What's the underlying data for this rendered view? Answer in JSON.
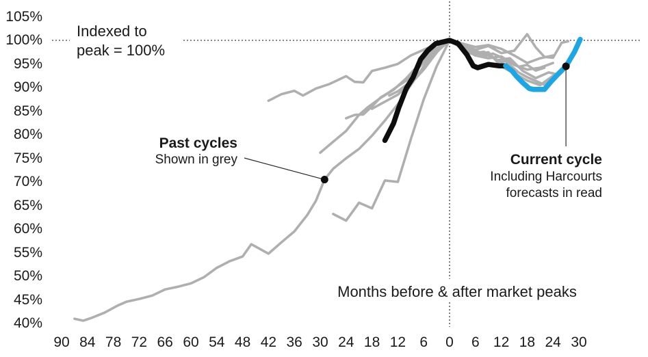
{
  "annotations": {
    "indexed_note": {
      "line1": "Indexed to",
      "line2": "peak = 100%"
    },
    "past_cycles": {
      "title": "Past cycles",
      "subtitle": "Shown in grey"
    },
    "current_cycle": {
      "title": "Current cycle",
      "subtitle1": "Including Harcourts",
      "subtitle2": "forecasts in read"
    }
  },
  "colors": {
    "grey": "#afafaf",
    "black": "#0d0d0d",
    "blue": "#1ca6e4",
    "dash": "#3a3a3a"
  },
  "chart_data": {
    "type": "line",
    "title": "",
    "xlabel": "Months before & after market peaks",
    "ylabel": "Indexed to peak = 100%",
    "xlim": [
      -95,
      35
    ],
    "ylim": [
      38,
      106
    ],
    "grid": false,
    "legend_position": "annotations-inline",
    "reference_lines": {
      "horizontal_at_100_pct": true,
      "vertical_at_month_0": true
    },
    "x_ticks": [
      [
        -90,
        "90"
      ],
      [
        -84,
        "84"
      ],
      [
        -78,
        "78"
      ],
      [
        -72,
        "72"
      ],
      [
        -66,
        "66"
      ],
      [
        -60,
        "60"
      ],
      [
        -54,
        "54"
      ],
      [
        -48,
        "48"
      ],
      [
        -42,
        "42"
      ],
      [
        -36,
        "36"
      ],
      [
        -30,
        "30"
      ],
      [
        -24,
        "24"
      ],
      [
        -18,
        "18"
      ],
      [
        -12,
        "12"
      ],
      [
        -6,
        "6"
      ],
      [
        0,
        "0"
      ],
      [
        6,
        "6"
      ],
      [
        12,
        "12"
      ],
      [
        18,
        "18"
      ],
      [
        24,
        "24"
      ],
      [
        30,
        "30"
      ]
    ],
    "y_ticks": [
      [
        105,
        "105%"
      ],
      [
        100,
        "100%"
      ],
      [
        95,
        "95%"
      ],
      [
        90,
        "90%"
      ],
      [
        85,
        "85%"
      ],
      [
        80,
        "80%"
      ],
      [
        75,
        "75%"
      ],
      [
        70,
        "70%"
      ],
      [
        65,
        "65%"
      ],
      [
        60,
        "60%"
      ],
      [
        55,
        "55%"
      ],
      [
        50,
        "50%"
      ],
      [
        45,
        "45%"
      ],
      [
        40,
        "40%"
      ]
    ],
    "series": [
      {
        "name": "past-cycle-1",
        "group": "past-cycles",
        "color": "#afafaf",
        "width": 3.6,
        "points": [
          [
            -87,
            41
          ],
          [
            -85,
            40.6
          ],
          [
            -83,
            41.2
          ],
          [
            -80,
            42.3
          ],
          [
            -77,
            43.8
          ],
          [
            -75,
            44.6
          ],
          [
            -72,
            45.2
          ],
          [
            -69,
            45.9
          ],
          [
            -66,
            47.2
          ],
          [
            -63,
            47.8
          ],
          [
            -60,
            48.5
          ],
          [
            -57,
            49.8
          ],
          [
            -54,
            51.8
          ],
          [
            -51,
            53.2
          ],
          [
            -48,
            54.2
          ],
          [
            -46,
            56.8
          ],
          [
            -42,
            54.8
          ],
          [
            -39,
            57.2
          ],
          [
            -36,
            59.5
          ],
          [
            -33,
            63
          ],
          [
            -31,
            66
          ],
          [
            -29,
            70.5
          ],
          [
            -27,
            72.8
          ],
          [
            -24,
            75
          ],
          [
            -21,
            77
          ],
          [
            -18,
            79.8
          ],
          [
            -15,
            83
          ],
          [
            -12,
            86.5
          ],
          [
            -9,
            90.5
          ],
          [
            -6,
            94.5
          ],
          [
            -3,
            98
          ],
          [
            0,
            100
          ],
          [
            2,
            99.2
          ],
          [
            4,
            98.2
          ],
          [
            6,
            96.8
          ],
          [
            9,
            96.2
          ],
          [
            12,
            96.6
          ],
          [
            15,
            94.8
          ],
          [
            18,
            93.8
          ],
          [
            21,
            94.2
          ],
          [
            24,
            95.2
          ]
        ]
      },
      {
        "name": "past-cycle-2",
        "group": "past-cycles",
        "color": "#afafaf",
        "width": 3.6,
        "points": [
          [
            -42,
            87.2
          ],
          [
            -39,
            88.6
          ],
          [
            -36,
            89.3
          ],
          [
            -34,
            88.3
          ],
          [
            -31,
            89.8
          ],
          [
            -28,
            90.7
          ],
          [
            -24,
            92.4
          ],
          [
            -22,
            91.2
          ],
          [
            -20,
            91.1
          ],
          [
            -18,
            93.5
          ],
          [
            -15,
            94.2
          ],
          [
            -12,
            95
          ],
          [
            -9,
            96.8
          ],
          [
            -6,
            98
          ],
          [
            -3,
            99.2
          ],
          [
            0,
            100
          ],
          [
            3,
            99
          ],
          [
            6,
            98
          ],
          [
            9,
            98.8
          ],
          [
            12,
            97.3
          ],
          [
            15,
            97.8
          ],
          [
            18,
            101.3
          ],
          [
            20,
            98.5
          ],
          [
            22,
            96.5
          ],
          [
            24,
            96.3
          ],
          [
            26,
            99.5
          ],
          [
            27.5,
            99.8
          ]
        ]
      },
      {
        "name": "past-cycle-3",
        "group": "past-cycles",
        "color": "#afafaf",
        "width": 3.6,
        "points": [
          [
            -30,
            76.2
          ],
          [
            -27,
            78.5
          ],
          [
            -24,
            80.8
          ],
          [
            -21,
            84.2
          ],
          [
            -19,
            85.8
          ],
          [
            -16,
            87.8
          ],
          [
            -13,
            89.5
          ],
          [
            -10,
            92
          ],
          [
            -7,
            95
          ],
          [
            -4,
            97.8
          ],
          [
            0,
            100
          ],
          [
            2,
            98.8
          ],
          [
            5,
            97.2
          ],
          [
            8,
            97.6
          ],
          [
            11,
            95.8
          ],
          [
            14,
            96.2
          ],
          [
            17,
            93.5
          ],
          [
            20,
            92
          ],
          [
            23,
            93.2
          ],
          [
            25,
            92.8
          ]
        ]
      },
      {
        "name": "past-cycle-4",
        "group": "past-cycles",
        "color": "#afafaf",
        "width": 3.6,
        "points": [
          [
            -27,
            63.2
          ],
          [
            -24,
            61.8
          ],
          [
            -21,
            65.6
          ],
          [
            -18,
            64.4
          ],
          [
            -15,
            70.3
          ],
          [
            -12,
            70
          ],
          [
            -9,
            79
          ],
          [
            -6,
            87.5
          ],
          [
            -3,
            94.5
          ],
          [
            0,
            100
          ],
          [
            3,
            98.2
          ],
          [
            6,
            96.8
          ],
          [
            9,
            97.5
          ],
          [
            12,
            94.5
          ],
          [
            15,
            93
          ],
          [
            18,
            91.5
          ],
          [
            21,
            90.5
          ],
          [
            24,
            92.5
          ]
        ]
      },
      {
        "name": "past-cycle-5",
        "group": "past-cycles",
        "color": "#afafaf",
        "width": 3.6,
        "points": [
          [
            -24,
            83.5
          ],
          [
            -22,
            84.2
          ],
          [
            -20,
            84.3
          ],
          [
            -18,
            86
          ],
          [
            -16,
            87.9
          ],
          [
            -14,
            89
          ],
          [
            -12,
            90.3
          ],
          [
            -10,
            91.5
          ],
          [
            -8,
            93.4
          ],
          [
            -6,
            95.3
          ],
          [
            -4,
            97.2
          ],
          [
            -2,
            99
          ],
          [
            0,
            100
          ],
          [
            3,
            99.3
          ],
          [
            6,
            98.6
          ],
          [
            9,
            99
          ],
          [
            12,
            98.2
          ],
          [
            15,
            96.8
          ],
          [
            18,
            95.2
          ],
          [
            21,
            96.2
          ],
          [
            24,
            96.8
          ]
        ]
      },
      {
        "name": "past-cycle-6",
        "group": "past-cycles",
        "color": "#afafaf",
        "width": 3.6,
        "points": [
          [
            -14,
            88.3
          ],
          [
            -12,
            89.2
          ],
          [
            -10,
            90.6
          ],
          [
            -8,
            91.8
          ],
          [
            -6,
            93.8
          ],
          [
            -4,
            96.2
          ],
          [
            -2,
            98.6
          ],
          [
            0,
            100
          ],
          [
            2,
            99.2
          ],
          [
            4,
            98.2
          ],
          [
            6,
            97.4
          ],
          [
            8,
            96.6
          ],
          [
            10,
            97.2
          ],
          [
            12,
            96.4
          ],
          [
            14,
            94.8
          ],
          [
            16,
            93.2
          ],
          [
            18,
            92.2
          ],
          [
            20,
            91.4
          ],
          [
            22,
            90.6
          ],
          [
            24,
            91.8
          ]
        ]
      },
      {
        "name": "past-cycle-7",
        "group": "past-cycles",
        "color": "#afafaf",
        "width": 3.6,
        "points": [
          [
            -18,
            85.5
          ],
          [
            -15,
            87
          ],
          [
            -12,
            88.5
          ],
          [
            -9,
            91
          ],
          [
            -6,
            94
          ],
          [
            -3,
            97.5
          ],
          [
            0,
            100
          ],
          [
            3,
            98.8
          ],
          [
            6,
            97.8
          ],
          [
            9,
            96.8
          ],
          [
            12,
            95.4
          ],
          [
            14,
            95.8
          ],
          [
            16,
            94.4
          ],
          [
            18,
            94.8
          ],
          [
            20,
            93.6
          ],
          [
            22,
            94.2
          ]
        ]
      },
      {
        "name": "current-cycle-actual",
        "group": "current-cycle",
        "color": "#0d0d0d",
        "width": 7.5,
        "points": [
          [
            -15,
            78.8
          ],
          [
            -13,
            82.4
          ],
          [
            -11.8,
            85.7
          ],
          [
            -10,
            89.9
          ],
          [
            -8.5,
            92.1
          ],
          [
            -6.7,
            96
          ],
          [
            -5,
            97.9
          ],
          [
            -3.2,
            99.3
          ],
          [
            0,
            100
          ],
          [
            2,
            99.3
          ],
          [
            4,
            97
          ],
          [
            5.5,
            94.6
          ],
          [
            6.5,
            94.2
          ],
          [
            9,
            94.9
          ],
          [
            11.5,
            94.6
          ],
          [
            13,
            94.6
          ]
        ]
      },
      {
        "name": "current-cycle-forecast",
        "group": "current-cycle",
        "color": "#1ca6e4",
        "width": 7.5,
        "points": [
          [
            13,
            94.6
          ],
          [
            14.5,
            93.5
          ],
          [
            15.5,
            92.4
          ],
          [
            17,
            91
          ],
          [
            18.5,
            89.8
          ],
          [
            19.5,
            89.6
          ],
          [
            22,
            89.6
          ],
          [
            23.5,
            91.2
          ],
          [
            25,
            92.7
          ],
          [
            27,
            94.5
          ],
          [
            29,
            97.6
          ],
          [
            30.3,
            100.2
          ]
        ]
      },
      {
        "name": "past-cycles-marker-dot",
        "group": "marker",
        "color": "#0d0d0d",
        "points": [
          [
            -29,
            70.5
          ]
        ]
      },
      {
        "name": "current-cycle-marker-dot",
        "group": "marker",
        "color": "#0d0d0d",
        "points": [
          [
            27,
            94.5
          ]
        ]
      }
    ]
  }
}
